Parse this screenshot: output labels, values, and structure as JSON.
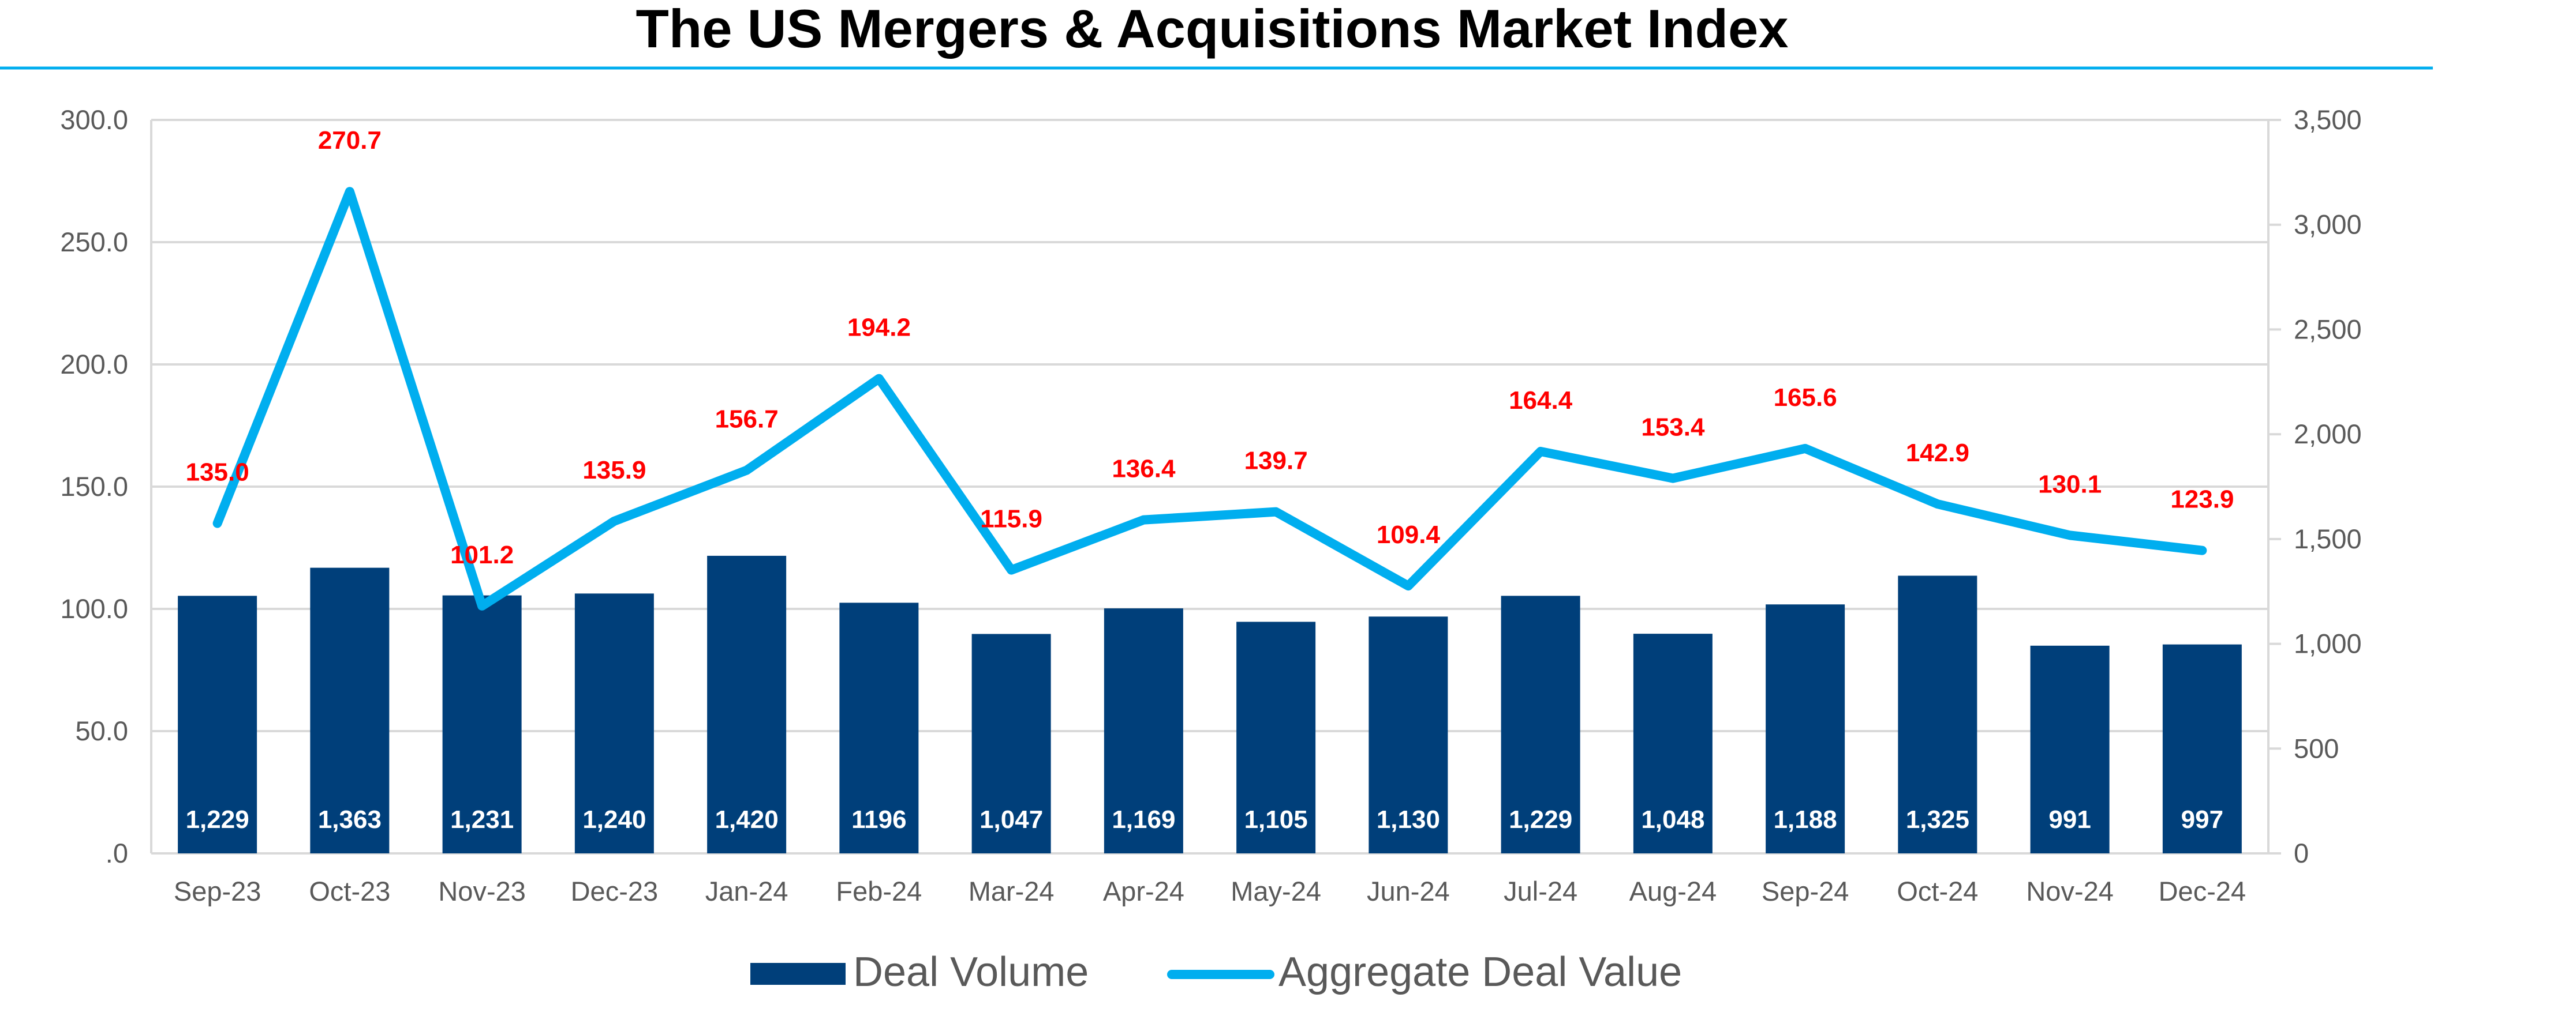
{
  "chart_data": {
    "type": "bar",
    "title": "The US Mergers & Acquisitions Market Index",
    "categories": [
      "Sep-23",
      "Oct-23",
      "Nov-23",
      "Dec-23",
      "Jan-24",
      "Feb-24",
      "Mar-24",
      "Apr-24",
      "May-24",
      "Jun-24",
      "Jul-24",
      "Aug-24",
      "Sep-24",
      "Oct-24",
      "Nov-24",
      "Dec-24"
    ],
    "y_left": {
      "ylim": [
        0,
        300
      ],
      "ticks": [
        ".0",
        "50.0",
        "100.0",
        "150.0",
        "200.0",
        "250.0",
        "300.0"
      ]
    },
    "y_right": {
      "ylim": [
        0,
        3500
      ],
      "ticks": [
        "0",
        "500",
        "1,000",
        "1,500",
        "2,000",
        "2,500",
        "3,000",
        "3,500"
      ]
    },
    "grid": true,
    "legend_position": "bottom",
    "series": [
      {
        "name": "Deal Volume",
        "type": "bar",
        "axis": "right",
        "color": "#003f7a",
        "values": [
          1229,
          1363,
          1231,
          1240,
          1420,
          1196,
          1047,
          1169,
          1105,
          1130,
          1229,
          1048,
          1188,
          1325,
          991,
          997
        ],
        "labels": [
          "1,229",
          "1,363",
          "1,231",
          "1,240",
          "1,420",
          "1196",
          "1,047",
          "1,169",
          "1,105",
          "1,130",
          "1,229",
          "1,048",
          "1,188",
          "1,325",
          "991",
          "997"
        ]
      },
      {
        "name": "Aggregate Deal Value",
        "type": "line",
        "axis": "left",
        "color": "#00aeef",
        "values": [
          135.0,
          270.7,
          101.2,
          135.9,
          156.7,
          194.2,
          115.9,
          136.4,
          139.7,
          109.4,
          164.4,
          153.4,
          165.6,
          142.9,
          130.1,
          123.9
        ],
        "labels": [
          "135.0",
          "270.7",
          "101.2",
          "135.9",
          "156.7",
          "194.2",
          "115.9",
          "136.4",
          "139.7",
          "109.4",
          "164.4",
          "153.4",
          "165.6",
          "142.9",
          "130.1",
          "123.9"
        ],
        "label_color": "#ff0000"
      }
    ]
  }
}
